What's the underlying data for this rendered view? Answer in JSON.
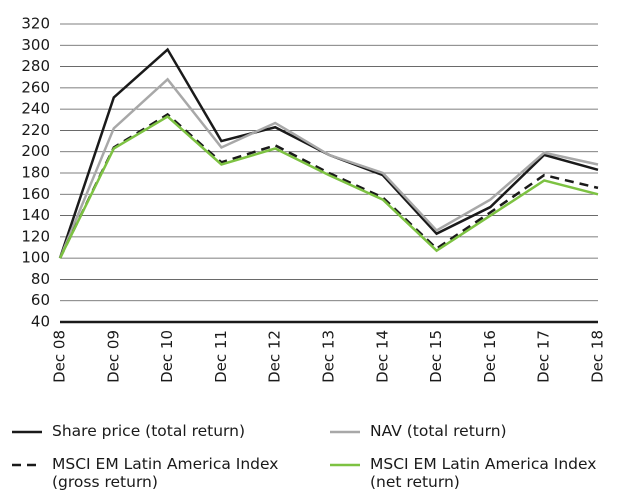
{
  "chart_data": {
    "type": "line",
    "categories": [
      "Dec 08",
      "Dec 09",
      "Dec 10",
      "Dec 11",
      "Dec 12",
      "Dec 13",
      "Dec 14",
      "Dec 15",
      "Dec 16",
      "Dec 17",
      "Dec 18"
    ],
    "series": [
      {
        "name": "Share price (total return)",
        "color": "#1a1a1a",
        "dashed": false,
        "values": [
          100,
          251,
          296,
          210,
          223,
          197,
          178,
          123,
          148,
          197,
          183
        ]
      },
      {
        "name": "NAV (total return)",
        "color": "#a8a8a8",
        "dashed": false,
        "values": [
          100,
          222,
          268,
          204,
          227,
          197,
          180,
          126,
          155,
          199,
          188
        ]
      },
      {
        "name": "MSCI EM Latin America Index (gross return)",
        "color": "#1a1a1a",
        "dashed": true,
        "values": [
          100,
          204,
          235,
          190,
          206,
          180,
          157,
          109,
          143,
          178,
          166
        ]
      },
      {
        "name": "MSCI EM Latin America Index (net return)",
        "color": "#7dc242",
        "dashed": false,
        "values": [
          100,
          203,
          233,
          188,
          203,
          178,
          155,
          107,
          140,
          173,
          160
        ]
      }
    ],
    "ylim": [
      40,
      320
    ],
    "yticks": [
      40,
      60,
      80,
      100,
      120,
      140,
      160,
      180,
      200,
      220,
      240,
      260,
      280,
      300,
      320
    ],
    "grid": true
  }
}
